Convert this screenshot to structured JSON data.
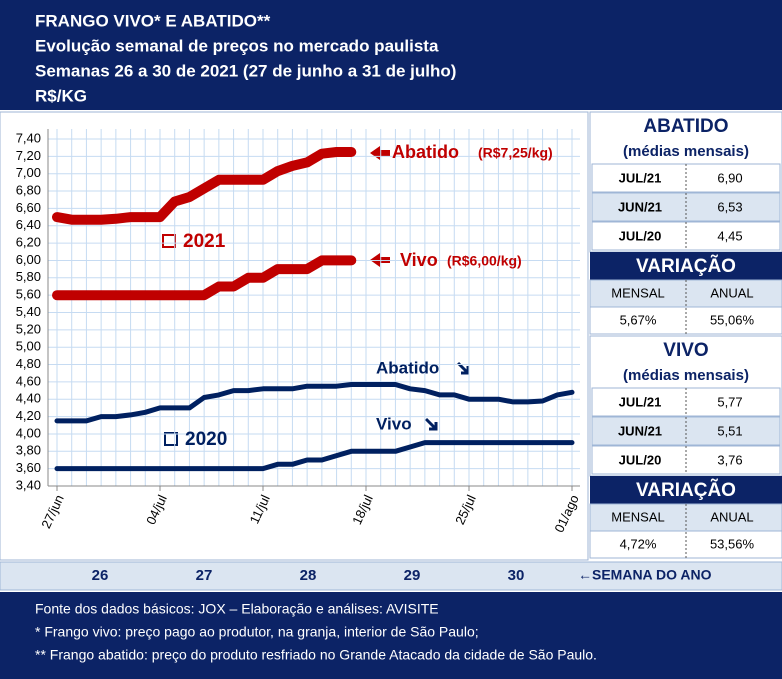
{
  "header": {
    "lines": [
      "FRANGO VIVO* E ABATIDO**",
      "Evolução semanal de preços no mercado paulista",
      "Semanas 26 a 30 de 2021 (27 de junho a 31 de julho)",
      "R$/KG"
    ]
  },
  "chart_data": {
    "type": "line",
    "categories": [
      "27/jun",
      null,
      null,
      null,
      null,
      null,
      null,
      "04/jul",
      null,
      null,
      null,
      null,
      null,
      null,
      "11/jul",
      null,
      null,
      null,
      null,
      null,
      null,
      "18/jul",
      null,
      null,
      null,
      null,
      null,
      null,
      "25/jul",
      null,
      null,
      null,
      null,
      null,
      null,
      "01/ago"
    ],
    "series": [
      {
        "name": "Abatido",
        "color": "#c00000",
        "values": [
          6.5,
          6.47,
          6.47,
          6.47,
          6.48,
          6.5,
          6.5,
          6.5,
          6.68,
          6.73,
          6.83,
          6.93,
          6.93,
          6.93,
          6.93,
          7.03,
          7.09,
          7.13,
          7.23,
          7.25,
          7.25,
          null,
          null,
          null,
          null,
          null,
          null,
          null,
          null,
          null,
          null,
          null,
          null,
          null,
          null,
          null
        ]
      },
      {
        "name": "Vivo",
        "color": "#c00000",
        "values": [
          5.6,
          5.6,
          5.6,
          5.6,
          5.6,
          5.6,
          5.6,
          5.6,
          5.6,
          5.6,
          5.6,
          5.7,
          5.7,
          5.8,
          5.8,
          5.9,
          5.9,
          5.9,
          6.0,
          6.0,
          6.0,
          null,
          null,
          null,
          null,
          null,
          null,
          null,
          null,
          null,
          null,
          null,
          null,
          null,
          null,
          null
        ]
      },
      {
        "name": "Abatido",
        "color": "#002060",
        "values": [
          4.15,
          4.15,
          4.15,
          4.2,
          4.2,
          4.22,
          4.25,
          4.3,
          4.3,
          4.3,
          4.42,
          4.45,
          4.5,
          4.5,
          4.52,
          4.52,
          4.52,
          4.55,
          4.55,
          4.55,
          4.57,
          4.57,
          4.57,
          4.57,
          4.52,
          4.5,
          4.45,
          4.45,
          4.4,
          4.4,
          4.4,
          4.37,
          4.37,
          4.38,
          4.45,
          4.48
        ]
      },
      {
        "name": "Vivo",
        "color": "#002060",
        "values": [
          3.6,
          3.6,
          3.6,
          3.6,
          3.6,
          3.6,
          3.6,
          3.6,
          3.6,
          3.6,
          3.6,
          3.6,
          3.6,
          3.6,
          3.6,
          3.65,
          3.65,
          3.7,
          3.7,
          3.75,
          3.8,
          3.8,
          3.8,
          3.8,
          3.85,
          3.9,
          3.9,
          3.9,
          3.9,
          3.9,
          3.9,
          3.9,
          3.9,
          3.9,
          3.9,
          3.9
        ]
      }
    ],
    "annotations": [
      "(R$7,25/kg)",
      "(R$6,00/kg)",
      "2021",
      "2020"
    ],
    "ylim": [
      3.4,
      7.4
    ],
    "yticks": [
      {
        "value": 3.4,
        "label": "3,40"
      },
      {
        "value": 3.6,
        "label": "3,60"
      },
      {
        "value": 3.8,
        "label": "3,80"
      },
      {
        "value": 4.0,
        "label": "4,00"
      },
      {
        "value": 4.2,
        "label": "4,20"
      },
      {
        "value": 4.4,
        "label": "4,40"
      },
      {
        "value": 4.6,
        "label": "4,60"
      },
      {
        "value": 4.8,
        "label": "4,80"
      },
      {
        "value": 5.0,
        "label": "5,00"
      },
      {
        "value": 5.2,
        "label": "5,20"
      },
      {
        "value": 5.4,
        "label": "5,40"
      },
      {
        "value": 5.6,
        "label": "5,60"
      },
      {
        "value": 5.8,
        "label": "5,80"
      },
      {
        "value": 6.0,
        "label": "6,00"
      },
      {
        "value": 6.2,
        "label": "6,20"
      },
      {
        "value": 6.4,
        "label": "6,40"
      },
      {
        "value": 6.6,
        "label": "6,60"
      },
      {
        "value": 6.8,
        "label": "6,80"
      },
      {
        "value": 7.0,
        "label": "7,00"
      },
      {
        "value": 7.2,
        "label": "7,20"
      },
      {
        "value": 7.4,
        "label": "7,40"
      }
    ],
    "grid": true,
    "weeks": [
      "26",
      "27",
      "28",
      "29",
      "30"
    ],
    "week_axis_label": "←SEMANA DO ANO"
  },
  "side_panels": [
    {
      "title": "ABATIDO",
      "subtitle": "(médias mensais)",
      "rows": [
        [
          "JUL/21",
          "6,90"
        ],
        [
          "JUN/21",
          "6,53"
        ],
        [
          "JUL/20",
          "4,45"
        ]
      ],
      "variation": {
        "title": "VARIAÇÃO",
        "headers": [
          "MENSAL",
          "ANUAL"
        ],
        "values": [
          "5,67%",
          "55,06%"
        ]
      }
    },
    {
      "title": "VIVO",
      "subtitle": "(médias mensais)",
      "rows": [
        [
          "JUL/21",
          "5,77"
        ],
        [
          "JUN/21",
          "5,51"
        ],
        [
          "JUL/20",
          "3,76"
        ]
      ],
      "variation": {
        "title": "VARIAÇÃO",
        "headers": [
          "MENSAL",
          "ANUAL"
        ],
        "values": [
          "4,72%",
          "53,56%"
        ]
      }
    }
  ],
  "footer": {
    "lines": [
      "Fonte dos dados básicos: JOX – Elaboração e análises: AVISITE",
      "*   Frango vivo: preço pago ao produtor, na granja, interior de São Paulo;",
      "** Frango abatido: preço do produto resfriado no Grande Atacado da cidade de São Paulo."
    ]
  }
}
